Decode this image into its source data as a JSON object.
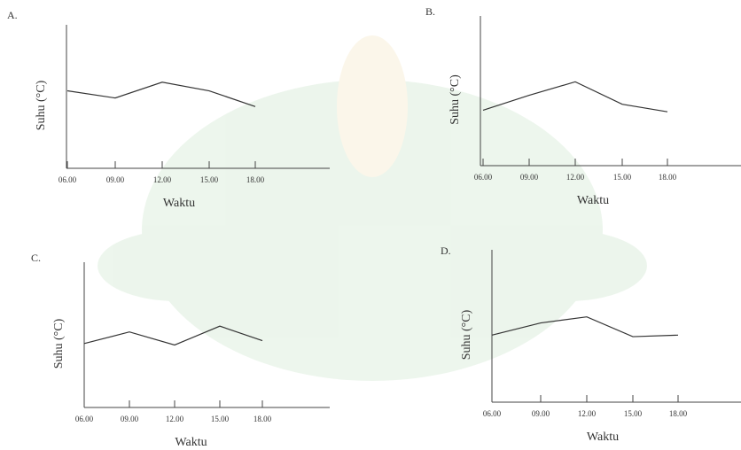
{
  "chart_data": [
    {
      "type": "line",
      "title": "A.",
      "ylabel": "Suhu (°C)",
      "xlabel": "Waktu",
      "categories": [
        "06.00",
        "09.00",
        "12.00",
        "15.00",
        "18.00"
      ],
      "values": [
        5.4,
        4.9,
        6.0,
        5.4,
        4.3
      ],
      "color": "#333333",
      "ylim": [
        0,
        10
      ]
    },
    {
      "type": "line",
      "title": "B.",
      "ylabel": "Suhu (°C)",
      "xlabel": "Waktu",
      "categories": [
        "06.00",
        "09.00",
        "12.00",
        "15.00",
        "18.00"
      ],
      "values": [
        3.7,
        4.7,
        5.6,
        4.1,
        3.6
      ],
      "color": "#333333",
      "ylim": [
        0,
        10
      ]
    },
    {
      "type": "line",
      "title": "C.",
      "ylabel": "Suhu (°C)",
      "xlabel": "Waktu",
      "categories": [
        "06.00",
        "09.00",
        "12.00",
        "15.00",
        "18.00"
      ],
      "values": [
        4.4,
        5.2,
        4.3,
        5.6,
        4.6
      ],
      "color": "#333333",
      "ylim": [
        0,
        10
      ]
    },
    {
      "type": "line",
      "title": "D.",
      "ylabel": "Suhu (°C)",
      "xlabel": "Waktu",
      "categories": [
        "06.00",
        "09.00",
        "12.00",
        "15.00",
        "18.00"
      ],
      "values": [
        4.4,
        5.2,
        5.6,
        4.3,
        4.4
      ],
      "color": "#333333",
      "ylim": [
        0,
        10
      ]
    }
  ]
}
